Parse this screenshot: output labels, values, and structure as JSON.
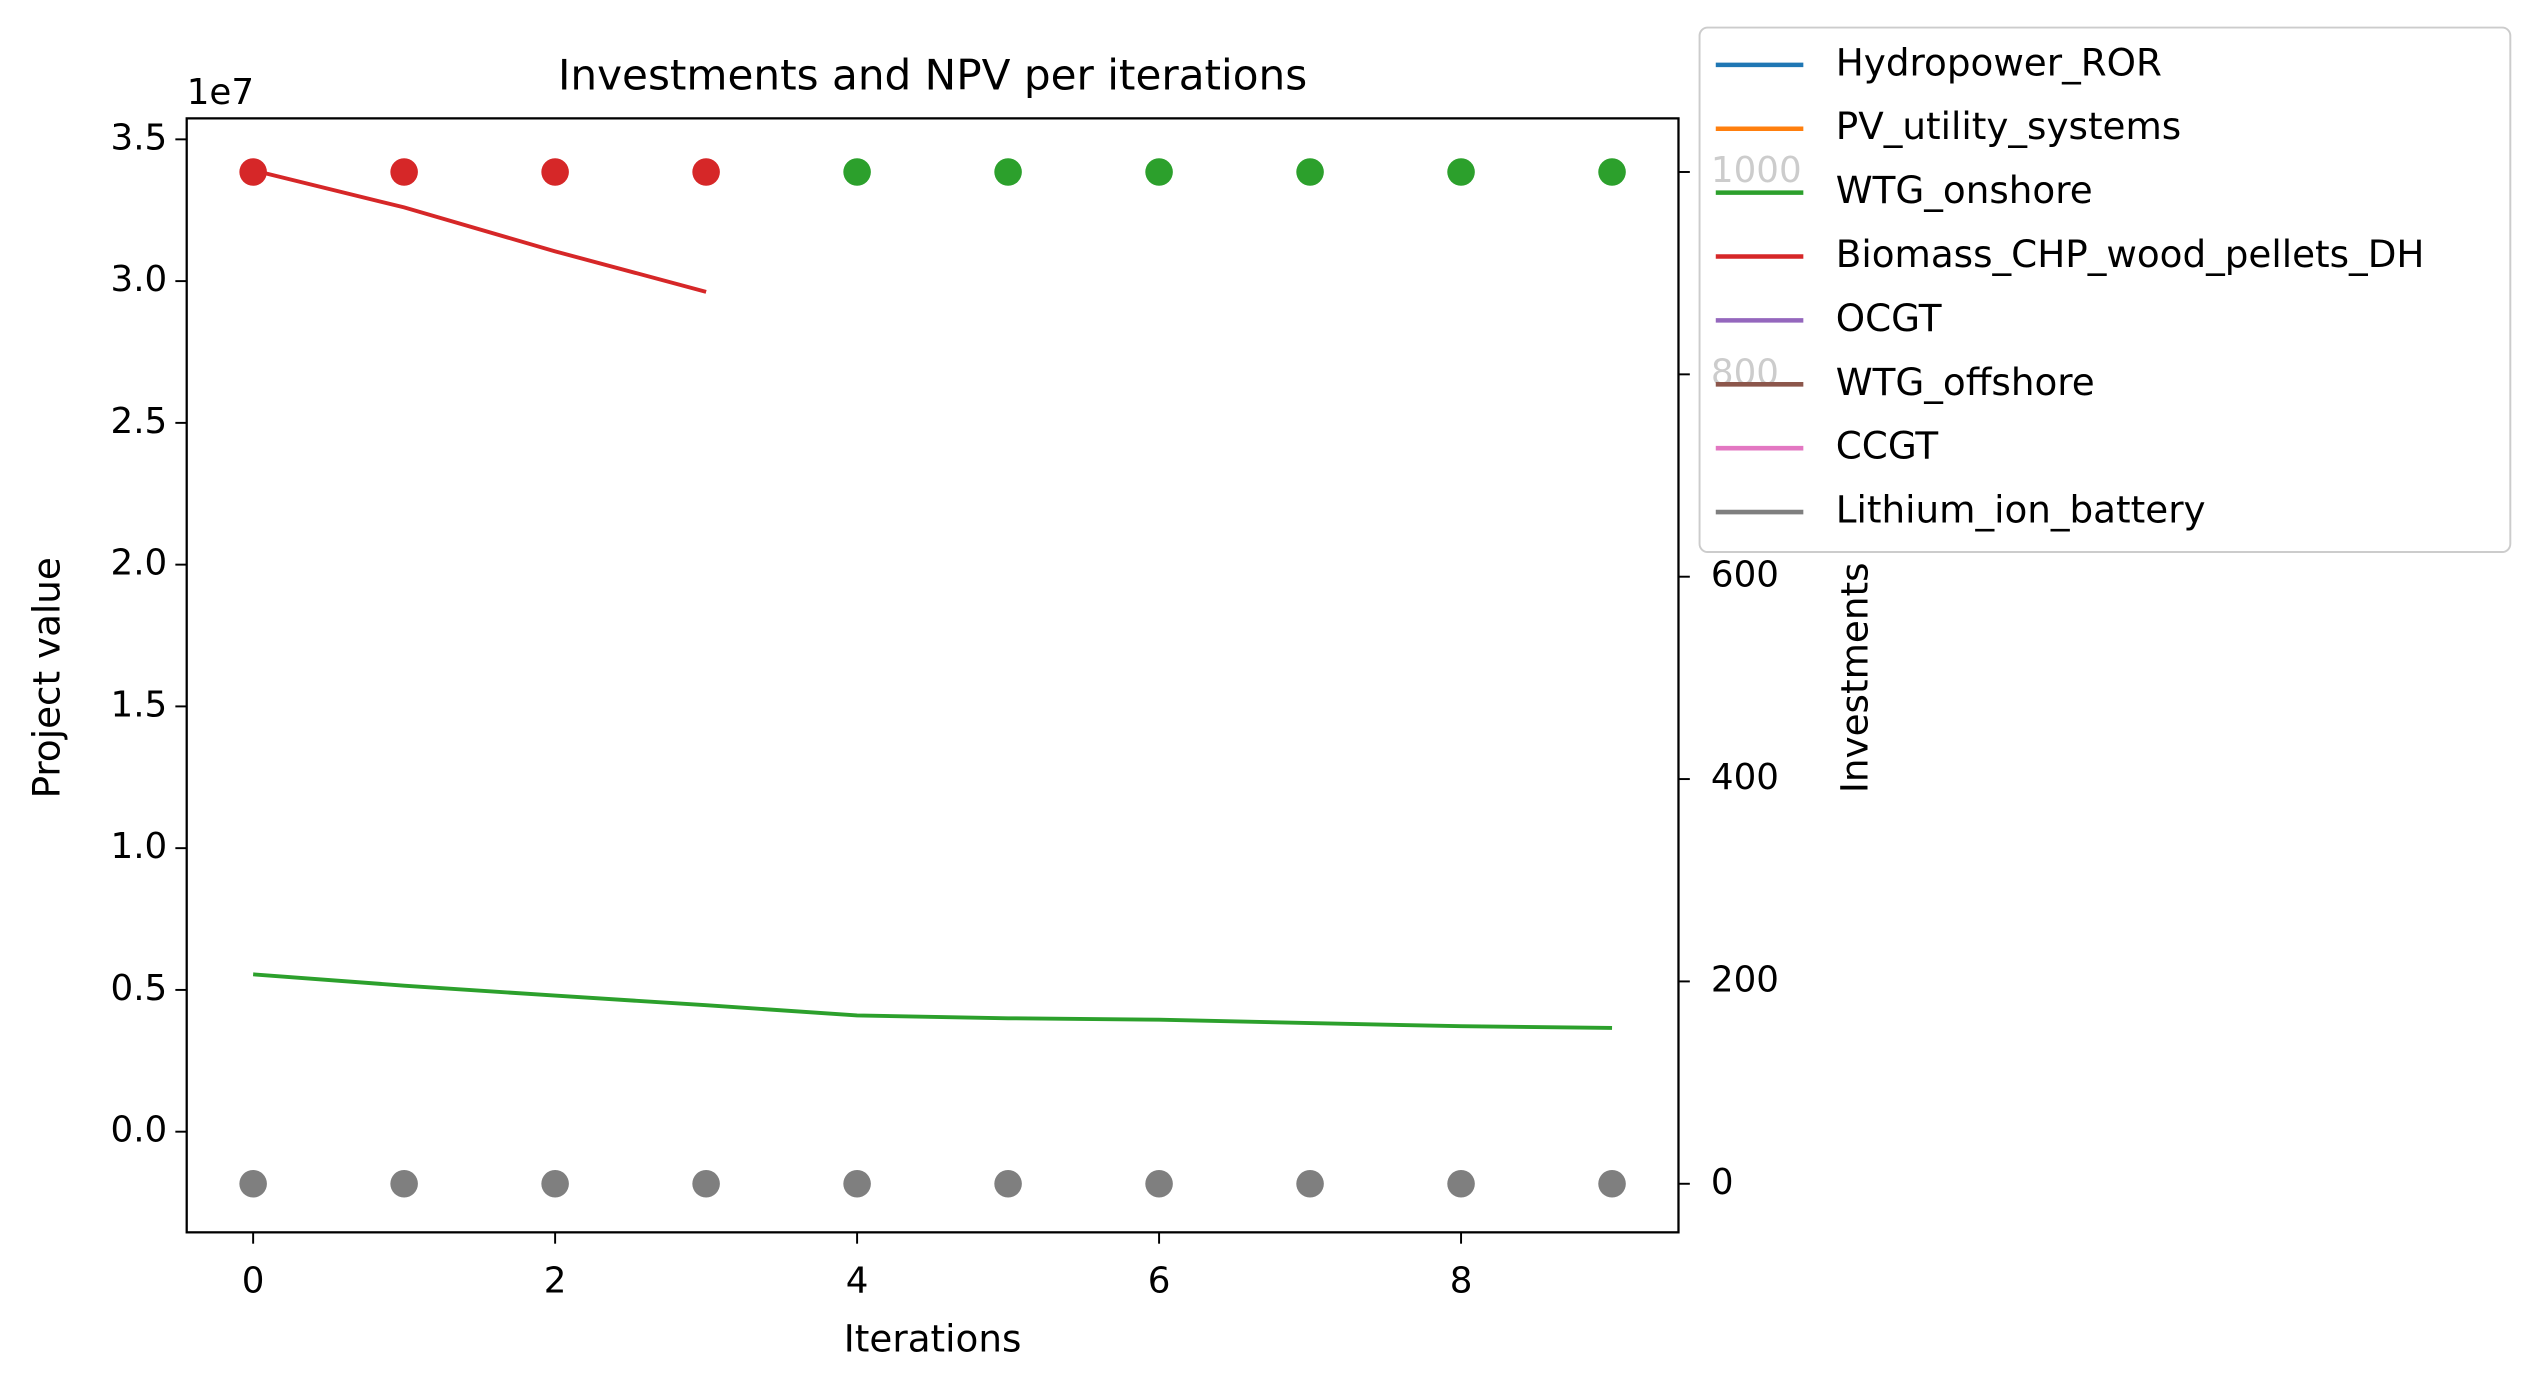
{
  "chart_data": {
    "type": "line",
    "title": "Investments and NPV per iterations",
    "xlabel": "Iterations",
    "ylabel": "Project value",
    "y2label": "Investments",
    "y_offset_label": "1e7",
    "x": [
      0,
      1,
      2,
      3,
      4,
      5,
      6,
      7,
      8,
      9
    ],
    "xlim": [
      -0.44,
      9.44
    ],
    "xticks": [
      0,
      2,
      4,
      6,
      8
    ],
    "ylim": [
      -3550000,
      35740000
    ],
    "yticks": [
      {
        "value": 0,
        "label": "0.0"
      },
      {
        "value": 5000000,
        "label": "0.5"
      },
      {
        "value": 10000000,
        "label": "1.0"
      },
      {
        "value": 15000000,
        "label": "1.5"
      },
      {
        "value": 20000000,
        "label": "2.0"
      },
      {
        "value": 25000000,
        "label": "2.5"
      },
      {
        "value": 30000000,
        "label": "3.0"
      },
      {
        "value": 35000000,
        "label": "3.5"
      }
    ],
    "y2lim": [
      -48,
      1053
    ],
    "y2ticks": [
      0,
      200,
      400,
      600,
      800,
      1000
    ],
    "legend": "outside-upper-right",
    "series": [
      {
        "name": "Hydropower_ROR",
        "color": "#1f77b4",
        "values": [
          null,
          null,
          null,
          null,
          null,
          null,
          null,
          null,
          null,
          null
        ],
        "investments": [
          null,
          null,
          null,
          null,
          null,
          null,
          null,
          null,
          null,
          null
        ]
      },
      {
        "name": "PV_utility_systems",
        "color": "#ff7f0e",
        "values": [
          null,
          null,
          null,
          null,
          null,
          null,
          null,
          null,
          null,
          null
        ],
        "investments": [
          null,
          null,
          null,
          null,
          null,
          null,
          null,
          null,
          null,
          null
        ]
      },
      {
        "name": "WTG_onshore",
        "color": "#2ca02c",
        "values": [
          5550000,
          5150000,
          4800000,
          4460000,
          4100000,
          4000000,
          3950000,
          3830000,
          3720000,
          3660000
        ],
        "investments": [
          null,
          null,
          null,
          null,
          1000,
          1000,
          1000,
          1000,
          1000,
          1000
        ],
        "axis_investments": "y2"
      },
      {
        "name": "Biomass_CHP_wood_pellets_DH",
        "color": "#d62728",
        "values": [
          33910000,
          32600000,
          31050000,
          29620000,
          null,
          null,
          null,
          null,
          null,
          null
        ],
        "investments": [
          1000,
          1000,
          1000,
          1000,
          null,
          null,
          null,
          null,
          null,
          null
        ],
        "axis_investments": "y2"
      },
      {
        "name": "OCGT",
        "color": "#9467bd",
        "values": [
          null,
          null,
          null,
          null,
          null,
          null,
          null,
          null,
          null,
          null
        ],
        "investments": [
          null,
          null,
          null,
          null,
          null,
          null,
          null,
          null,
          null,
          null
        ]
      },
      {
        "name": "WTG_offshore",
        "color": "#8c564b",
        "values": [
          null,
          null,
          null,
          null,
          null,
          null,
          null,
          null,
          null,
          null
        ],
        "investments": [
          null,
          null,
          null,
          null,
          null,
          null,
          null,
          null,
          null,
          null
        ]
      },
      {
        "name": "CCGT",
        "color": "#e377c2",
        "values": [
          null,
          null,
          null,
          null,
          null,
          null,
          null,
          null,
          null,
          null
        ],
        "investments": [
          null,
          null,
          null,
          null,
          null,
          null,
          null,
          null,
          null,
          null
        ]
      },
      {
        "name": "Lithium_ion_battery",
        "color": "#7f7f7f",
        "values": [
          null,
          null,
          null,
          null,
          null,
          null,
          null,
          null,
          null,
          null
        ],
        "investments": [
          0,
          0,
          0,
          0,
          0,
          0,
          0,
          0,
          0,
          0
        ],
        "axis_investments": "y2"
      }
    ]
  }
}
